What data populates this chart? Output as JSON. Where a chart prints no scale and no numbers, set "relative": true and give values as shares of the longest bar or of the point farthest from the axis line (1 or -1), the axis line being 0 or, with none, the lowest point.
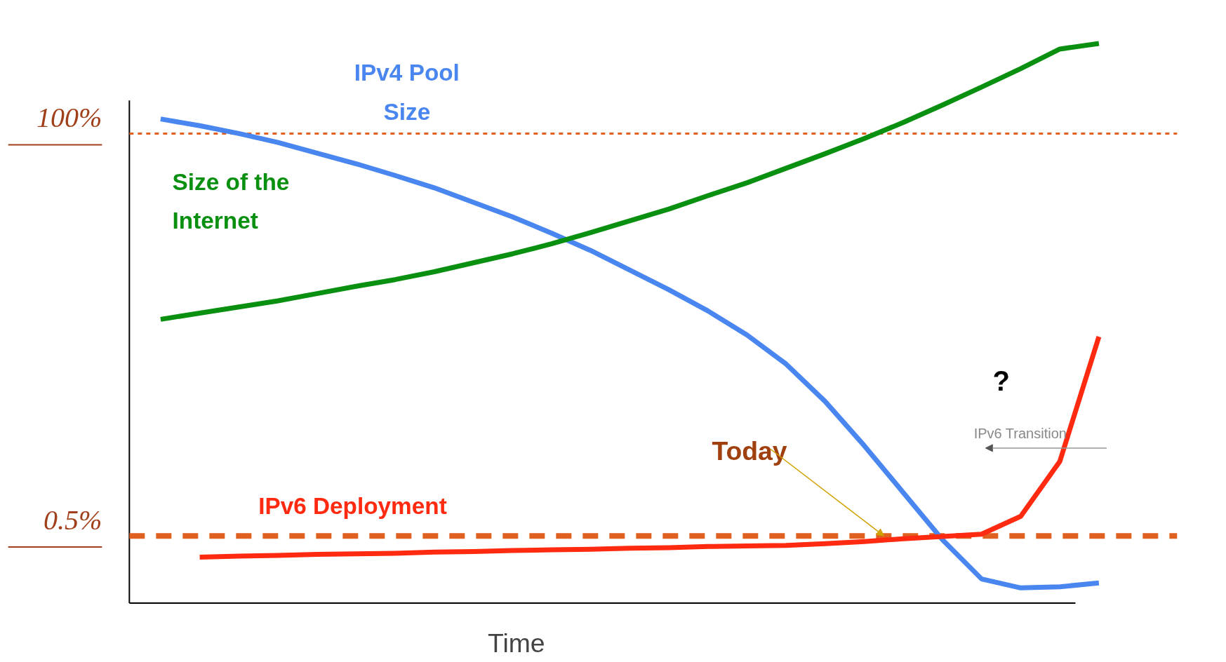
{
  "chart_data": {
    "type": "line",
    "relative": true,
    "xlabel": "Time",
    "categories": [
      null,
      null,
      null,
      null,
      null,
      null,
      null,
      null,
      null,
      null,
      null,
      null,
      null,
      null,
      null,
      null,
      null,
      null,
      null,
      null,
      null,
      null,
      null,
      null,
      null
    ],
    "series": [
      {
        "name": "IPv4 Pool Size",
        "color": "#4a86f0",
        "values": [
          0.865,
          0.853,
          0.839,
          0.823,
          0.804,
          0.785,
          0.764,
          0.742,
          0.716,
          0.69,
          0.661,
          0.63,
          0.595,
          0.56,
          0.522,
          0.479,
          0.427,
          0.36,
          0.281,
          0.197,
          0.113,
          0.043,
          0.027,
          0.029,
          0.036
        ]
      },
      {
        "name": "Size of the Internet",
        "color": "#0a9010",
        "values": [
          0.507,
          0.518,
          0.529,
          0.54,
          0.553,
          0.566,
          0.578,
          0.592,
          0.608,
          0.624,
          0.642,
          0.662,
          0.683,
          0.704,
          0.728,
          0.751,
          0.777,
          0.803,
          0.83,
          0.859,
          0.89,
          0.922,
          0.955,
          0.99,
          1.0
        ]
      },
      {
        "name": "IPv6 Deployment",
        "color": "#ff2a10",
        "values": [
          null,
          0.082,
          0.084,
          0.085,
          0.087,
          0.088,
          0.089,
          0.091,
          0.092,
          0.094,
          0.095,
          0.096,
          0.098,
          0.099,
          0.101,
          0.102,
          0.103,
          0.106,
          0.11,
          0.115,
          0.119,
          0.123,
          0.155,
          0.253,
          0.476
        ]
      }
    ],
    "ref_lines": [
      {
        "axis": "y",
        "value": 0.839,
        "color": "#e06020",
        "line_style": "dashed"
      },
      {
        "axis": "y",
        "value": 0.12,
        "color": "#e06020",
        "line_style": "dashed"
      }
    ],
    "annotations": [
      "Today",
      "?",
      "IPv6 Transition",
      "100%",
      "0.5%"
    ]
  }
}
